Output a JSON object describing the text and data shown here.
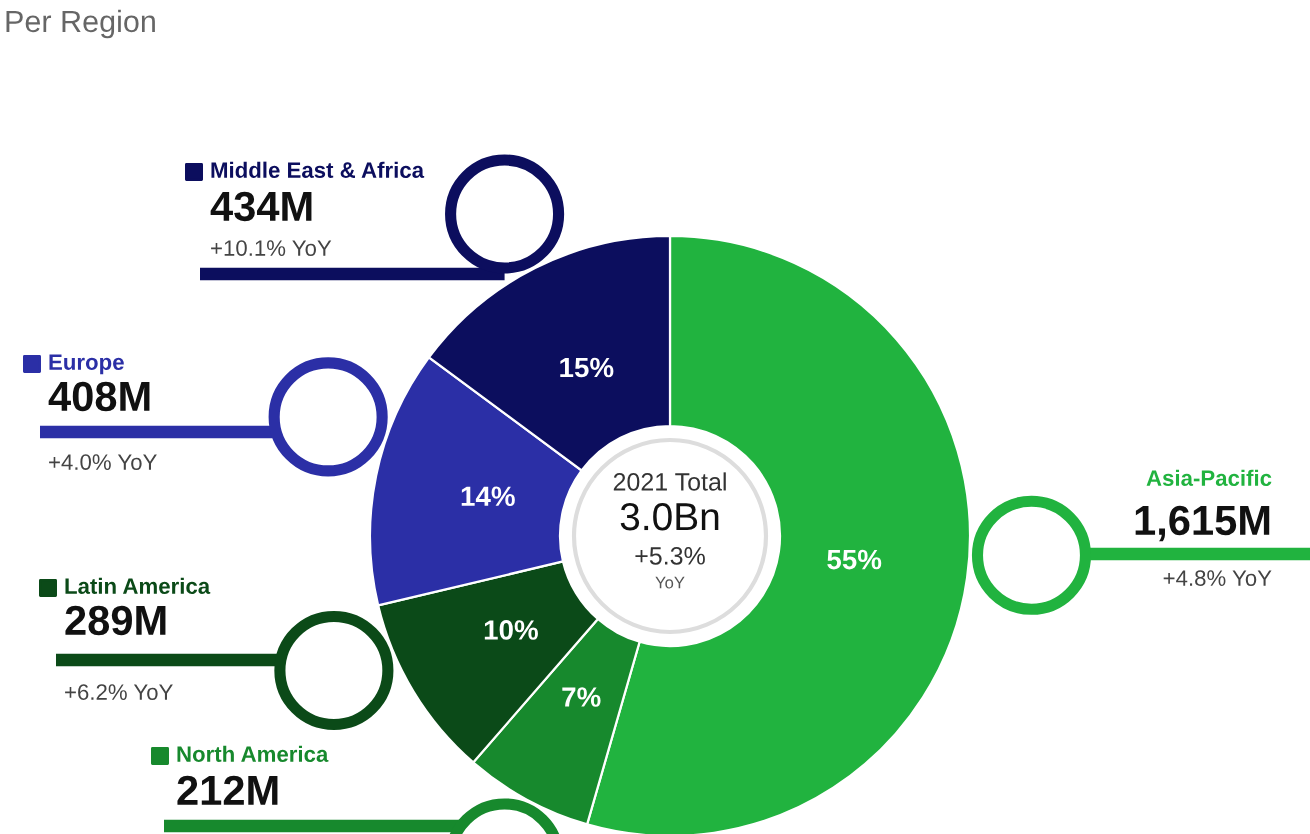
{
  "chart_data": {
    "type": "donut",
    "title": "Per Region",
    "categories": [
      "Asia-Pacific",
      "North America",
      "Latin America",
      "Europe",
      "Middle East & Africa"
    ],
    "values": [
      55,
      7,
      10,
      14,
      15
    ],
    "value_labels": [
      "55%",
      "7%",
      "10%",
      "14%",
      "15%"
    ],
    "colors": [
      "#21b33f",
      "#17892d",
      "#0b4a18",
      "#2b2fa6",
      "#0c0e5e"
    ],
    "legend": "left",
    "annotations": [
      "2021 Total",
      "3.0Bn",
      "+5.3%",
      "YoY",
      "1,615M",
      "+4.8% YoY",
      "212M",
      "289M",
      "+6.2% YoY",
      "408M",
      "+4.0% YoY",
      "434M",
      "+10.1% YoY"
    ]
  }
}
